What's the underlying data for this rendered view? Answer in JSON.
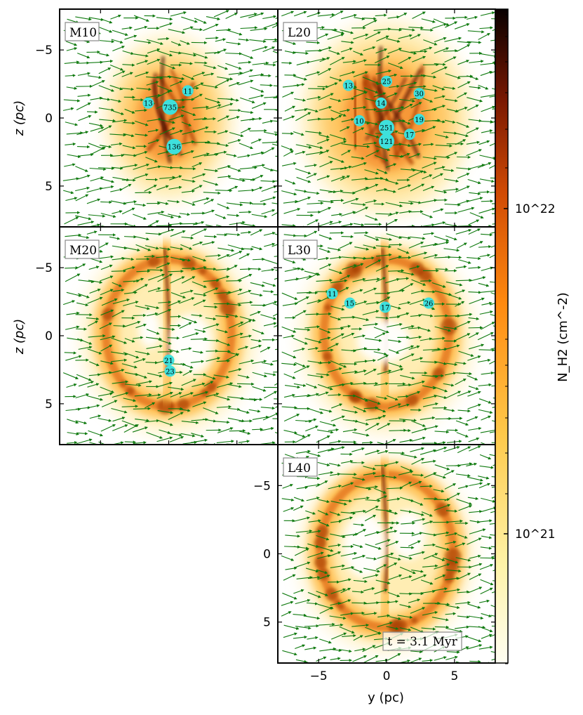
{
  "figure": {
    "time_label": "t = 3.1 Myr",
    "axis_labels": {
      "x": "y (pc)",
      "y": "z (pc)",
      "colorbar": "N_H2 (cm^-2)"
    },
    "tick_labels": {
      "y_axis": [
        "5",
        "0",
        "−5"
      ],
      "x_axis": [
        "−5",
        "0",
        "5"
      ],
      "colorbar": [
        "10^22",
        "10^21"
      ]
    },
    "colors": {
      "arrow": "#0f7a0f",
      "sink": "#3ee0dc",
      "frame": "#000000",
      "label_box_border": "#888888"
    }
  },
  "chart_data": {
    "type": "heatmap",
    "description_fields": {
      "x_axis_range_pc": [
        -8,
        8
      ],
      "y_axis_range_pc": [
        -8,
        8
      ],
      "x_ticks": [
        -5,
        0,
        5
      ],
      "y_ticks": [
        -5,
        0,
        5
      ],
      "colorbar_scale": "log",
      "colorbar_range_cm2": [
        3e+20,
        3.5e+22
      ],
      "colorbar_ticks": [
        1e+21,
        1e+22
      ],
      "colormap": "afmhot_r",
      "vectors": "velocity field"
    },
    "panels": [
      {
        "id": "M10",
        "label": "M10",
        "morphology": "compact",
        "sinks": [
          {
            "label": "11",
            "y": 1.4,
            "z": 2.0
          },
          {
            "label": "13",
            "y": -1.5,
            "z": 1.1
          },
          {
            "label": "735",
            "y": 0.1,
            "z": 0.8
          },
          {
            "label": "136",
            "y": 0.4,
            "z": -2.1
          }
        ]
      },
      {
        "id": "L20",
        "label": "L20",
        "morphology": "filled",
        "sinks": [
          {
            "label": "25",
            "y": 0.0,
            "z": 2.7
          },
          {
            "label": "13",
            "y": -2.8,
            "z": 2.4
          },
          {
            "label": "30",
            "y": 2.4,
            "z": 1.8
          },
          {
            "label": "14",
            "y": -0.4,
            "z": 1.1
          },
          {
            "label": "10",
            "y": -2.0,
            "z": -0.2
          },
          {
            "label": "19",
            "y": 2.4,
            "z": -0.1
          },
          {
            "label": "251",
            "y": 0.0,
            "z": -0.7
          },
          {
            "label": "17",
            "y": 1.7,
            "z": -1.2
          },
          {
            "label": "121",
            "y": 0.0,
            "z": -1.7
          }
        ]
      },
      {
        "id": "M20",
        "label": "M20",
        "morphology": "shell",
        "sinks": [
          {
            "label": "21",
            "y": 0.0,
            "z": -1.8
          },
          {
            "label": "23",
            "y": 0.1,
            "z": -2.6
          }
        ]
      },
      {
        "id": "L30",
        "label": "L30",
        "morphology": "shell",
        "sinks": [
          {
            "label": "11",
            "y": -4.0,
            "z": 3.1
          },
          {
            "label": "15",
            "y": -2.7,
            "z": 2.4
          },
          {
            "label": "17",
            "y": -0.1,
            "z": 2.1
          },
          {
            "label": "26",
            "y": 3.1,
            "z": 2.4
          }
        ]
      },
      {
        "id": "L40",
        "label": "L40",
        "morphology": "ring",
        "sinks": []
      }
    ]
  }
}
